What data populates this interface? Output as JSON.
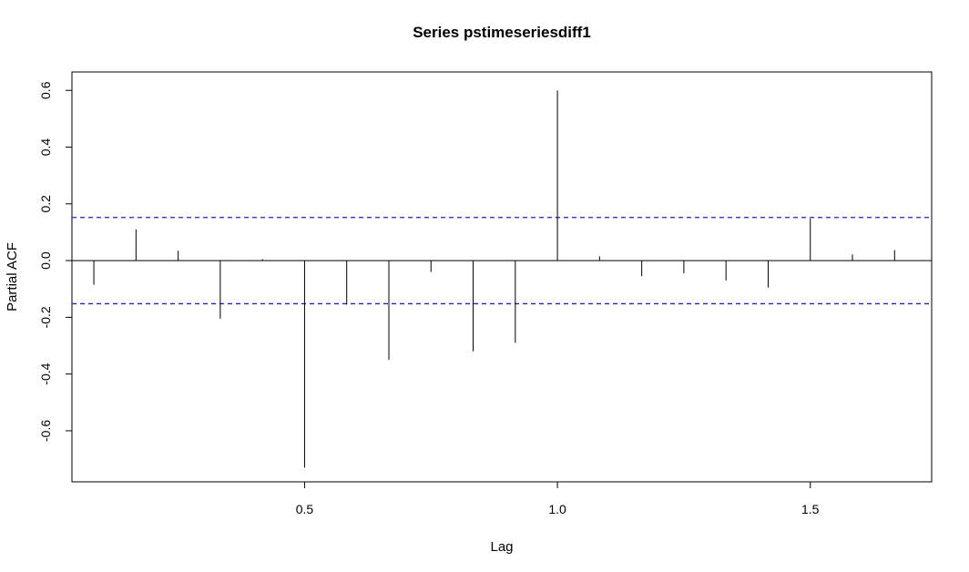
{
  "chart_data": {
    "type": "bar",
    "title": "Series  pstimeseriesdiff1",
    "xlabel": "Lag",
    "ylabel": "Partial ACF",
    "xlim": [
      0.04,
      1.74
    ],
    "ylim": [
      -0.78,
      0.665
    ],
    "x_ticks": [
      0.5,
      1.0,
      1.5
    ],
    "x_tick_labels": [
      "0.5",
      "1.0",
      "1.5"
    ],
    "y_ticks": [
      -0.6,
      -0.4,
      -0.2,
      0.0,
      0.2,
      0.4,
      0.6
    ],
    "y_tick_labels": [
      "-0.6",
      "-0.4",
      "-0.2",
      "0.0",
      "0.2",
      "0.4",
      "0.6"
    ],
    "confidence_bound": 0.152,
    "confidence_color": "#2020c8",
    "grid": false,
    "x": [
      0.0833,
      0.1667,
      0.25,
      0.3333,
      0.4167,
      0.5,
      0.5833,
      0.6667,
      0.75,
      0.8333,
      0.9167,
      1.0,
      1.0833,
      1.1667,
      1.25,
      1.3333,
      1.4167,
      1.5,
      1.5833,
      1.6667
    ],
    "values": [
      -0.085,
      0.11,
      0.035,
      -0.205,
      0.005,
      -0.73,
      -0.155,
      -0.35,
      -0.04,
      -0.32,
      -0.29,
      0.6,
      0.015,
      -0.055,
      -0.045,
      -0.07,
      -0.095,
      0.148,
      0.022,
      0.037
    ]
  }
}
